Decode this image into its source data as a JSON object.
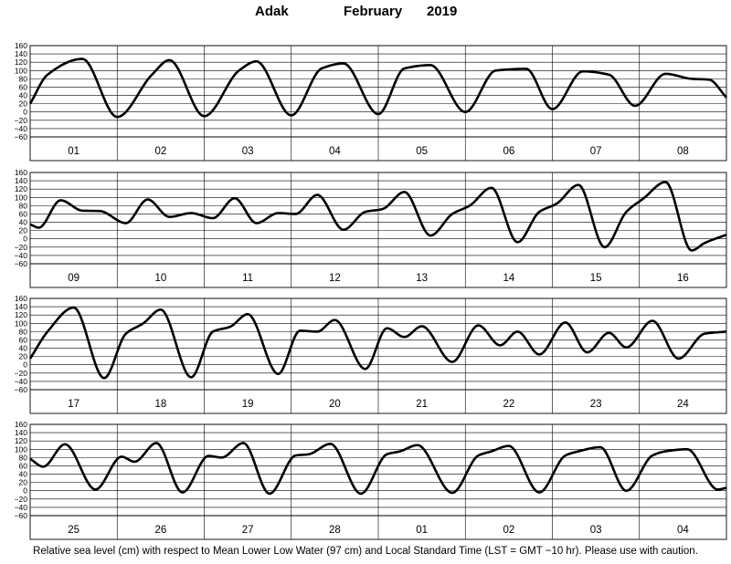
{
  "title": {
    "station": "Adak",
    "month": "February",
    "year": "2019"
  },
  "footnote": "Relative sea level (cm) with respect to Mean Lower Low Water (97 cm) and Local Standard Time (LST = GMT −10 hr). Please use with caution.",
  "chart_data": [
    {
      "type": "line",
      "days": [
        "01",
        "02",
        "03",
        "04",
        "05",
        "06",
        "07",
        "08"
      ],
      "y_ticks": [
        "160",
        "140",
        "120",
        "100",
        "80",
        "60",
        "40",
        "20",
        "0",
        "−20",
        "−40",
        "−60"
      ],
      "ylim": [
        -60,
        160
      ],
      "grid": true,
      "extrema": [
        [
          0.0,
          20
        ],
        [
          0.2,
          90
        ],
        [
          0.6,
          128
        ],
        [
          1.0,
          -12
        ],
        [
          1.4,
          90
        ],
        [
          1.6,
          125
        ],
        [
          2.0,
          -10
        ],
        [
          2.4,
          100
        ],
        [
          2.6,
          122
        ],
        [
          3.0,
          -8
        ],
        [
          3.35,
          105
        ],
        [
          3.6,
          117
        ],
        [
          4.0,
          -5
        ],
        [
          4.3,
          105
        ],
        [
          4.6,
          113
        ],
        [
          5.0,
          0
        ],
        [
          5.35,
          100
        ],
        [
          5.7,
          104
        ],
        [
          6.0,
          7
        ],
        [
          6.35,
          98
        ],
        [
          6.65,
          90
        ],
        [
          6.95,
          15
        ],
        [
          7.3,
          92
        ],
        [
          7.6,
          80
        ],
        [
          7.8,
          78
        ],
        [
          8.0,
          35
        ]
      ]
    },
    {
      "type": "line",
      "days": [
        "09",
        "10",
        "11",
        "12",
        "13",
        "14",
        "15",
        "16"
      ],
      "y_ticks": [
        "160",
        "140",
        "120",
        "100",
        "80",
        "60",
        "40",
        "20",
        "0",
        "−20",
        "−40",
        "−60"
      ],
      "ylim": [
        -60,
        160
      ],
      "grid": true,
      "extrema": [
        [
          0.0,
          35
        ],
        [
          0.1,
          27
        ],
        [
          0.35,
          93
        ],
        [
          0.6,
          68
        ],
        [
          0.8,
          67
        ],
        [
          1.1,
          38
        ],
        [
          1.35,
          95
        ],
        [
          1.6,
          53
        ],
        [
          1.85,
          62
        ],
        [
          2.1,
          50
        ],
        [
          2.35,
          98
        ],
        [
          2.6,
          38
        ],
        [
          2.85,
          62
        ],
        [
          3.05,
          60
        ],
        [
          3.3,
          106
        ],
        [
          3.6,
          22
        ],
        [
          3.85,
          65
        ],
        [
          4.05,
          72
        ],
        [
          4.3,
          113
        ],
        [
          4.6,
          8
        ],
        [
          4.85,
          60
        ],
        [
          5.05,
          80
        ],
        [
          5.3,
          123
        ],
        [
          5.6,
          -8
        ],
        [
          5.85,
          65
        ],
        [
          6.05,
          85
        ],
        [
          6.3,
          130
        ],
        [
          6.6,
          -20
        ],
        [
          6.85,
          65
        ],
        [
          7.05,
          98
        ],
        [
          7.3,
          137
        ],
        [
          7.6,
          -28
        ],
        [
          7.75,
          -10
        ],
        [
          8.0,
          10
        ]
      ]
    },
    {
      "type": "line",
      "days": [
        "17",
        "18",
        "19",
        "20",
        "21",
        "22",
        "23",
        "24"
      ],
      "y_ticks": [
        "160",
        "140",
        "120",
        "100",
        "80",
        "60",
        "40",
        "20",
        "0",
        "−20",
        "−40",
        "−60"
      ],
      "ylim": [
        -60,
        160
      ],
      "grid": true,
      "extrema": [
        [
          0.0,
          15
        ],
        [
          0.2,
          80
        ],
        [
          0.5,
          138
        ],
        [
          0.85,
          -32
        ],
        [
          1.1,
          75
        ],
        [
          1.3,
          100
        ],
        [
          1.5,
          133
        ],
        [
          1.85,
          -30
        ],
        [
          2.1,
          80
        ],
        [
          2.3,
          92
        ],
        [
          2.5,
          122
        ],
        [
          2.85,
          -22
        ],
        [
          3.1,
          82
        ],
        [
          3.3,
          80
        ],
        [
          3.5,
          108
        ],
        [
          3.85,
          -10
        ],
        [
          4.1,
          88
        ],
        [
          4.3,
          67
        ],
        [
          4.5,
          93
        ],
        [
          4.85,
          7
        ],
        [
          5.15,
          95
        ],
        [
          5.4,
          47
        ],
        [
          5.6,
          80
        ],
        [
          5.85,
          25
        ],
        [
          6.15,
          102
        ],
        [
          6.4,
          30
        ],
        [
          6.65,
          77
        ],
        [
          6.85,
          42
        ],
        [
          7.15,
          106
        ],
        [
          7.45,
          15
        ],
        [
          7.75,
          75
        ],
        [
          8.0,
          80
        ]
      ]
    },
    {
      "type": "line",
      "days": [
        "25",
        "26",
        "27",
        "28",
        "01",
        "02",
        "03",
        "04"
      ],
      "y_ticks": [
        "160",
        "140",
        "120",
        "100",
        "80",
        "60",
        "40",
        "20",
        "0",
        "−20",
        "−40",
        "−60"
      ],
      "ylim": [
        -60,
        160
      ],
      "grid": true,
      "extrema": [
        [
          0.0,
          77
        ],
        [
          0.15,
          58
        ],
        [
          0.4,
          112
        ],
        [
          0.75,
          3
        ],
        [
          1.05,
          82
        ],
        [
          1.2,
          70
        ],
        [
          1.45,
          115
        ],
        [
          1.75,
          -4
        ],
        [
          2.05,
          84
        ],
        [
          2.2,
          80
        ],
        [
          2.45,
          115
        ],
        [
          2.75,
          -7
        ],
        [
          3.05,
          85
        ],
        [
          3.2,
          88
        ],
        [
          3.45,
          113
        ],
        [
          3.8,
          -7
        ],
        [
          4.1,
          88
        ],
        [
          4.25,
          95
        ],
        [
          4.45,
          110
        ],
        [
          4.85,
          -5
        ],
        [
          5.15,
          85
        ],
        [
          5.3,
          95
        ],
        [
          5.5,
          108
        ],
        [
          5.85,
          -4
        ],
        [
          6.15,
          85
        ],
        [
          6.3,
          95
        ],
        [
          6.55,
          105
        ],
        [
          6.85,
          0
        ],
        [
          7.15,
          85
        ],
        [
          7.3,
          95
        ],
        [
          7.55,
          100
        ],
        [
          7.9,
          3
        ],
        [
          8.0,
          7
        ]
      ]
    }
  ]
}
